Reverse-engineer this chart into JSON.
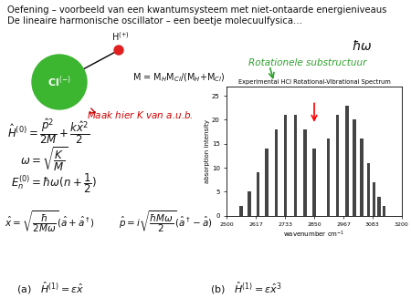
{
  "title1": "Oefening – voorbeeld van een kwantumsysteem met niet-ontaarde energieniveaus",
  "title2": "De lineaire harmonische oscillator – een beetje molecuulfysica…",
  "bg_color": "#ffffff",
  "cl_color": "#3cb531",
  "h_color": "#e02020",
  "arrow_color": "#cc0000",
  "rotational_color": "#2ca02c",
  "p_wn": [
    2558,
    2590,
    2625,
    2660,
    2698,
    2734,
    2775,
    2814,
    2850
  ],
  "p_int": [
    2,
    5,
    9,
    14,
    18,
    21,
    21,
    18,
    14
  ],
  "r_wn": [
    2906,
    2944,
    2982,
    3010,
    3040,
    3067,
    3090,
    3110,
    3130
  ],
  "r_int": [
    16,
    21,
    23,
    20,
    16,
    11,
    7,
    4,
    2
  ],
  "spec_xlim": [
    2500,
    3200
  ],
  "spec_ylim": [
    0,
    27
  ],
  "spec_xticks": [
    2500,
    2617,
    2733,
    2850,
    2967,
    3083,
    3200
  ],
  "spec_yticks": [
    0,
    5,
    10,
    15,
    20,
    25
  ]
}
